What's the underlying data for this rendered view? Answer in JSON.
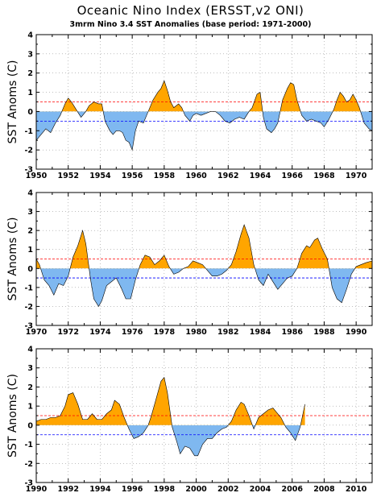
{
  "title": "Oceanic Nino Index (ERSST,v2 ONI)",
  "subtitle": "3mrm Nino 3.4 SST Anomalies (base period: 1971-2000)",
  "colors": {
    "warm": "#FFA500",
    "cold": "#7FB8F0",
    "warm_line": "#FF0000",
    "cold_line": "#0000FF"
  },
  "chart_data": [
    {
      "type": "area",
      "ylabel": "SST Anoms (C)",
      "xlim": [
        1950,
        1971
      ],
      "ylim": [
        -3,
        4
      ],
      "xticks": [
        1950,
        1952,
        1954,
        1956,
        1958,
        1960,
        1962,
        1964,
        1966,
        1968,
        1970
      ],
      "yticks": [
        -3,
        -2,
        -1,
        0,
        1,
        2,
        3,
        4
      ],
      "thresholds": [
        0.5,
        -0.5
      ],
      "grid": true,
      "x": [
        1950.0,
        1950.3,
        1950.6,
        1950.9,
        1951.2,
        1951.5,
        1951.8,
        1952.0,
        1952.2,
        1952.5,
        1952.8,
        1953.1,
        1953.3,
        1953.6,
        1953.9,
        1954.1,
        1954.3,
        1954.6,
        1954.8,
        1955.0,
        1955.2,
        1955.4,
        1955.6,
        1955.8,
        1956.0,
        1956.2,
        1956.4,
        1956.7,
        1957.0,
        1957.3,
        1957.6,
        1957.8,
        1958.0,
        1958.2,
        1958.4,
        1958.6,
        1958.9,
        1959.1,
        1959.3,
        1959.6,
        1959.8,
        1960.0,
        1960.3,
        1960.6,
        1960.9,
        1961.2,
        1961.5,
        1961.8,
        1962.1,
        1962.4,
        1962.7,
        1963.0,
        1963.3,
        1963.5,
        1963.8,
        1964.0,
        1964.2,
        1964.4,
        1964.7,
        1964.9,
        1965.1,
        1965.4,
        1965.7,
        1965.9,
        1966.1,
        1966.3,
        1966.6,
        1966.9,
        1967.2,
        1967.5,
        1967.8,
        1968.0,
        1968.3,
        1968.6,
        1968.8,
        1969.0,
        1969.2,
        1969.4,
        1969.6,
        1969.8,
        1970.0,
        1970.2,
        1970.5,
        1970.8,
        1971.0
      ],
      "values": [
        -1.5,
        -1.2,
        -0.9,
        -1.1,
        -0.6,
        -0.2,
        0.4,
        0.7,
        0.5,
        0.1,
        -0.3,
        0.0,
        0.3,
        0.5,
        0.4,
        0.4,
        -0.5,
        -1.0,
        -1.2,
        -1.0,
        -1.0,
        -1.1,
        -1.5,
        -1.6,
        -2.0,
        -1.0,
        -0.5,
        -0.6,
        0.0,
        0.6,
        1.0,
        1.2,
        1.6,
        1.1,
        0.5,
        0.2,
        0.4,
        0.2,
        -0.2,
        -0.5,
        -0.2,
        -0.1,
        -0.2,
        -0.1,
        0.0,
        0.0,
        -0.2,
        -0.5,
        -0.6,
        -0.4,
        -0.3,
        -0.4,
        0.0,
        0.2,
        0.9,
        1.0,
        -0.3,
        -0.9,
        -1.1,
        -0.9,
        -0.6,
        0.6,
        1.2,
        1.5,
        1.4,
        0.6,
        -0.2,
        -0.5,
        -0.4,
        -0.5,
        -0.6,
        -0.8,
        -0.4,
        0.1,
        0.6,
        1.0,
        0.8,
        0.5,
        0.6,
        0.9,
        0.6,
        0.2,
        -0.6,
        -0.9,
        -1.0
      ]
    },
    {
      "type": "area",
      "ylabel": "SST Anoms (C)",
      "xlim": [
        1970,
        1991
      ],
      "ylim": [
        -3,
        4
      ],
      "xticks": [
        1970,
        1972,
        1974,
        1976,
        1978,
        1980,
        1982,
        1984,
        1986,
        1988,
        1990
      ],
      "yticks": [
        -3,
        -2,
        -1,
        0,
        1,
        2,
        3,
        4
      ],
      "thresholds": [
        0.5,
        -0.5
      ],
      "grid": true,
      "x": [
        1970.0,
        1970.2,
        1970.5,
        1970.8,
        1971.1,
        1971.4,
        1971.7,
        1972.0,
        1972.3,
        1972.6,
        1972.9,
        1973.1,
        1973.4,
        1973.6,
        1973.9,
        1974.1,
        1974.4,
        1974.7,
        1975.0,
        1975.3,
        1975.6,
        1975.9,
        1976.2,
        1976.5,
        1976.8,
        1977.1,
        1977.4,
        1977.7,
        1978.0,
        1978.3,
        1978.6,
        1978.9,
        1979.2,
        1979.5,
        1979.8,
        1980.1,
        1980.4,
        1980.7,
        1981.0,
        1981.3,
        1981.6,
        1981.9,
        1982.2,
        1982.5,
        1982.8,
        1983.0,
        1983.3,
        1983.6,
        1983.9,
        1984.2,
        1984.5,
        1984.8,
        1985.1,
        1985.4,
        1985.7,
        1986.0,
        1986.3,
        1986.6,
        1986.9,
        1987.1,
        1987.4,
        1987.6,
        1987.9,
        1988.2,
        1988.5,
        1988.8,
        1989.1,
        1989.4,
        1989.7,
        1990.0,
        1990.3,
        1990.6,
        1991.0
      ],
      "values": [
        0.5,
        0.2,
        -0.6,
        -0.9,
        -1.4,
        -0.8,
        -0.9,
        -0.4,
        0.6,
        1.2,
        2.0,
        1.3,
        -0.6,
        -1.6,
        -2.0,
        -1.7,
        -0.9,
        -0.7,
        -0.5,
        -1.0,
        -1.6,
        -1.6,
        -0.6,
        0.2,
        0.7,
        0.6,
        0.2,
        0.4,
        0.7,
        0.1,
        -0.3,
        -0.2,
        0.0,
        0.1,
        0.4,
        0.3,
        0.2,
        -0.1,
        -0.4,
        -0.4,
        -0.3,
        -0.1,
        0.2,
        0.9,
        1.8,
        2.3,
        1.6,
        0.2,
        -0.6,
        -0.9,
        -0.3,
        -0.7,
        -1.1,
        -0.8,
        -0.5,
        -0.4,
        0.0,
        0.8,
        1.2,
        1.1,
        1.5,
        1.6,
        1.0,
        0.5,
        -1.0,
        -1.6,
        -1.8,
        -1.1,
        -0.3,
        0.1,
        0.2,
        0.3,
        0.4
      ]
    },
    {
      "type": "area",
      "ylabel": "SST Anoms (C)",
      "xlim": [
        1990,
        2011
      ],
      "ylim": [
        -3,
        4
      ],
      "xticks": [
        1990,
        1992,
        1994,
        1996,
        1998,
        2000,
        2002,
        2004,
        2006,
        2008,
        2010
      ],
      "yticks": [
        -3,
        -2,
        -1,
        0,
        1,
        2,
        3,
        4
      ],
      "thresholds": [
        0.5,
        -0.5
      ],
      "grid": true,
      "x": [
        1990.0,
        1990.3,
        1990.6,
        1990.9,
        1991.2,
        1991.5,
        1991.8,
        1992.0,
        1992.3,
        1992.6,
        1992.9,
        1993.2,
        1993.5,
        1993.8,
        1994.1,
        1994.4,
        1994.7,
        1994.9,
        1995.2,
        1995.5,
        1995.8,
        1996.1,
        1996.4,
        1996.7,
        1997.0,
        1997.2,
        1997.5,
        1997.8,
        1998.0,
        1998.2,
        1998.5,
        1998.8,
        1999.0,
        1999.3,
        1999.6,
        1999.9,
        2000.1,
        2000.4,
        2000.7,
        2001.0,
        2001.3,
        2001.6,
        2001.9,
        2002.2,
        2002.5,
        2002.8,
        2003.0,
        2003.3,
        2003.6,
        2003.9,
        2004.2,
        2004.5,
        2004.8,
        2005.0,
        2005.3,
        2005.6,
        2005.9,
        2006.2,
        2006.5,
        2006.8
      ],
      "values": [
        0.2,
        0.3,
        0.3,
        0.4,
        0.4,
        0.5,
        1.0,
        1.6,
        1.7,
        1.1,
        0.3,
        0.3,
        0.6,
        0.3,
        0.3,
        0.6,
        0.8,
        1.3,
        1.1,
        0.4,
        -0.2,
        -0.7,
        -0.6,
        -0.4,
        0.0,
        0.5,
        1.4,
        2.3,
        2.5,
        1.7,
        -0.1,
        -0.9,
        -1.5,
        -1.1,
        -1.2,
        -1.6,
        -1.6,
        -1.0,
        -0.7,
        -0.7,
        -0.4,
        -0.2,
        -0.1,
        0.2,
        0.8,
        1.2,
        1.1,
        0.5,
        -0.2,
        0.4,
        0.6,
        0.8,
        0.9,
        0.7,
        0.4,
        -0.1,
        -0.4,
        -0.8,
        -0.1,
        1.1
      ]
    }
  ]
}
